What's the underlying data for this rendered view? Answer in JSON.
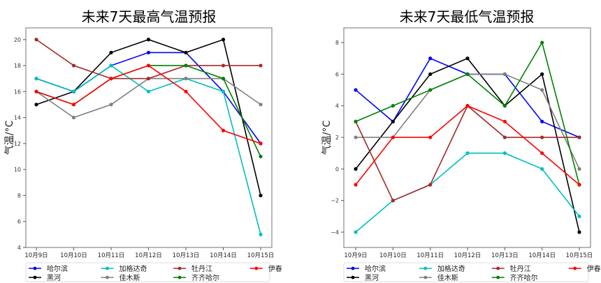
{
  "chart_data": [
    {
      "type": "line",
      "title": "未来7天最高气温预报",
      "xlabel": "",
      "ylabel": "气温/°C",
      "ylim": [
        4,
        20.9
      ],
      "yticks": [
        4,
        6,
        8,
        10,
        12,
        14,
        16,
        18,
        20
      ],
      "categories": [
        "10月9日",
        "10月10日",
        "10月11日",
        "10月12日",
        "10月13日",
        "10月14日",
        "10月15日"
      ],
      "legend_position": "bottom",
      "series": [
        {
          "name": "哈尔滨",
          "color": "#0000ff",
          "values": [
            17,
            16,
            18,
            19,
            19,
            16,
            12
          ]
        },
        {
          "name": "黑河",
          "color": "#000000",
          "values": [
            15,
            16,
            19,
            20,
            19,
            20,
            8
          ]
        },
        {
          "name": "加格达奇",
          "color": "#00bfbf",
          "values": [
            17,
            16,
            18,
            16,
            17,
            16,
            5
          ]
        },
        {
          "name": "佳木斯",
          "color": "#808080",
          "values": [
            16,
            14,
            15,
            17,
            17,
            17,
            15
          ]
        },
        {
          "name": "牡丹江",
          "color": "#a52a2a",
          "values": [
            20,
            18,
            17,
            17,
            18,
            18,
            18
          ]
        },
        {
          "name": "齐齐哈尔",
          "color": "#008000",
          "values": [
            16,
            15,
            17,
            18,
            18,
            17,
            11
          ]
        },
        {
          "name": "伊春",
          "color": "#ff0000",
          "values": [
            16,
            15,
            17,
            18,
            16,
            13,
            12
          ]
        }
      ]
    },
    {
      "type": "line",
      "title": "未来7天最低气温预报",
      "xlabel": "",
      "ylabel": "气温/°C",
      "ylim": [
        -4.97,
        8.93
      ],
      "yticks": [
        -4,
        -2,
        0,
        2,
        4,
        6,
        8
      ],
      "categories": [
        "10月9日",
        "10月10日",
        "10月11日",
        "10月12日",
        "10月13日",
        "10月14日",
        "10月15日"
      ],
      "legend_position": "bottom",
      "series": [
        {
          "name": "哈尔滨",
          "color": "#0000ff",
          "values": [
            5,
            3,
            7,
            6,
            6,
            3,
            2
          ]
        },
        {
          "name": "黑河",
          "color": "#000000",
          "values": [
            0,
            3,
            6,
            7,
            4,
            6,
            -4
          ]
        },
        {
          "name": "加格达奇",
          "color": "#00bfbf",
          "values": [
            -4,
            -2,
            -1,
            1,
            1,
            0,
            -3
          ]
        },
        {
          "name": "佳木斯",
          "color": "#808080",
          "values": [
            2,
            2,
            5,
            6,
            6,
            5,
            0
          ]
        },
        {
          "name": "牡丹江",
          "color": "#a52a2a",
          "values": [
            3,
            -2,
            -1,
            4,
            2,
            2,
            2
          ]
        },
        {
          "name": "齐齐哈尔",
          "color": "#008000",
          "values": [
            3,
            4,
            5,
            6,
            4,
            8,
            -1
          ]
        },
        {
          "name": "伊春",
          "color": "#ff0000",
          "values": [
            -1,
            2,
            2,
            4,
            3,
            1,
            -1
          ]
        }
      ]
    }
  ]
}
